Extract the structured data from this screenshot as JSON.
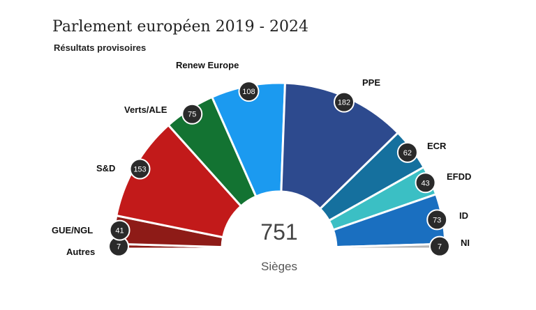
{
  "title": "Parlement européen 2019 - 2024",
  "subtitle": "Résultats provisoires",
  "chart_data": {
    "type": "parliament",
    "total": "751",
    "total_label": "Sièges",
    "series": [
      {
        "name": "Autres",
        "value": 7,
        "color": "#8B1A14"
      },
      {
        "name": "GUE/NGL",
        "value": 41,
        "color": "#8E1B17"
      },
      {
        "name": "S&D",
        "value": 153,
        "color": "#C21A1A"
      },
      {
        "name": "Verts/ALE",
        "value": 75,
        "color": "#137332"
      },
      {
        "name": "Renew Europe",
        "value": 108,
        "color": "#1B9AF0"
      },
      {
        "name": "PPE",
        "value": 182,
        "color": "#2D4A8E"
      },
      {
        "name": "ECR",
        "value": 62,
        "color": "#15709E"
      },
      {
        "name": "EFDD",
        "value": 43,
        "color": "#3BBFC4"
      },
      {
        "name": "ID",
        "value": 73,
        "color": "#1A6FC0"
      },
      {
        "name": "NI",
        "value": 7,
        "color": "#B5B5B5"
      }
    ]
  }
}
